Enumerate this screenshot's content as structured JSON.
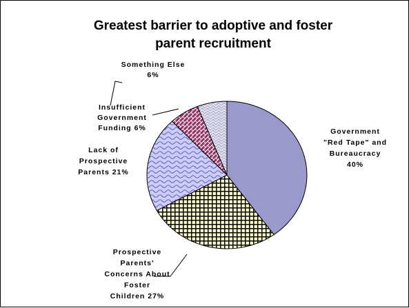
{
  "chart_data": {
    "type": "pie",
    "title": "Greatest barrier to adoptive and foster parent recruitment",
    "title_lines": [
      "Greatest barrier to adoptive and foster",
      "parent recruitment"
    ],
    "slices": [
      {
        "label_lines": [
          "Government",
          "\"Red Tape\" and",
          "Bureaucracy",
          "40%"
        ],
        "value": 40,
        "color": "#9999cc",
        "pattern": "solid"
      },
      {
        "label_lines": [
          "Prospective",
          "Parents'",
          "Concerns About",
          "Foster",
          "Children 27%"
        ],
        "value": 27,
        "color": "#ffffcc",
        "pattern": "grid"
      },
      {
        "label_lines": [
          "Lack of",
          "Prospective",
          "Parents 21%"
        ],
        "value": 21,
        "color": "#ccccff",
        "pattern": "waves"
      },
      {
        "label_lines": [
          "Insufficient",
          "Government",
          "Funding 6%"
        ],
        "value": 6,
        "color": "#993366",
        "pattern": "weave"
      },
      {
        "label_lines": [
          "Something Else",
          "6%"
        ],
        "value": 6,
        "color": "#e6e6f5",
        "pattern": "zigzag"
      }
    ],
    "legend": "none"
  }
}
